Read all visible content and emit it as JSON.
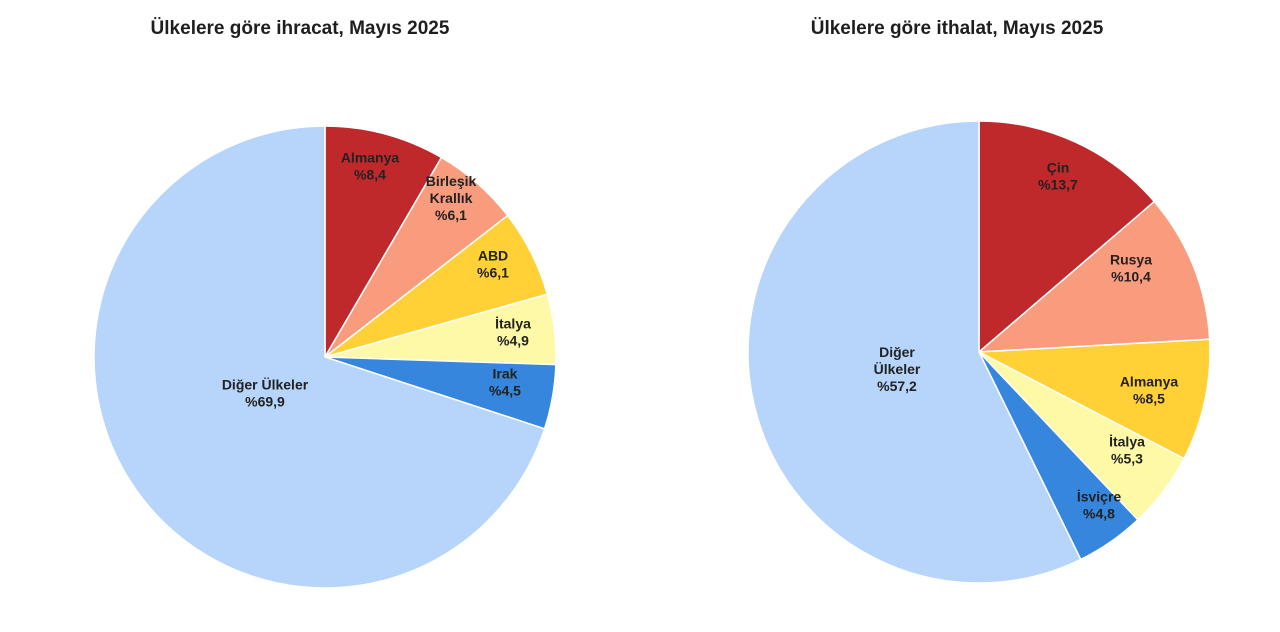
{
  "chart_data": [
    {
      "type": "pie",
      "title": "Ülkelere göre ihracat, Mayıs 2025",
      "slices": [
        {
          "label": "Almanya",
          "value": 8.4,
          "value_label": "%8,4",
          "color": "#c0292b"
        },
        {
          "label": "Birleşik Krallık",
          "value": 6.1,
          "value_label": "%6,1",
          "color": "#f99b7d"
        },
        {
          "label": "ABD",
          "value": 6.1,
          "value_label": "%6,1",
          "color": "#ffd136"
        },
        {
          "label": "İtalya",
          "value": 4.9,
          "value_label": "%4,9",
          "color": "#fdf9a6"
        },
        {
          "label": "Irak",
          "value": 4.5,
          "value_label": "%4,5",
          "color": "#3586dc"
        },
        {
          "label": "Diğer Ülkeler",
          "value": 69.9,
          "value_label": "%69,9",
          "color": "#b7d5fb"
        }
      ]
    },
    {
      "type": "pie",
      "title": "Ülkelere göre ithalat, Mayıs 2025",
      "slices": [
        {
          "label": "Çin",
          "value": 13.7,
          "value_label": "%13,7",
          "color": "#c0292b"
        },
        {
          "label": "Rusya",
          "value": 10.4,
          "value_label": "%10,4",
          "color": "#f99b7d"
        },
        {
          "label": "Almanya",
          "value": 8.5,
          "value_label": "%8,5",
          "color": "#ffd136"
        },
        {
          "label": "İtalya",
          "value": 5.3,
          "value_label": "%5,3",
          "color": "#fdf9a6"
        },
        {
          "label": "İsviçre",
          "value": 4.8,
          "value_label": "%4,8",
          "color": "#3586dc"
        },
        {
          "label": "Diğer Ülkeler",
          "value": 57.2,
          "value_label": "%57,2",
          "color": "#b7d5fb"
        }
      ]
    }
  ]
}
